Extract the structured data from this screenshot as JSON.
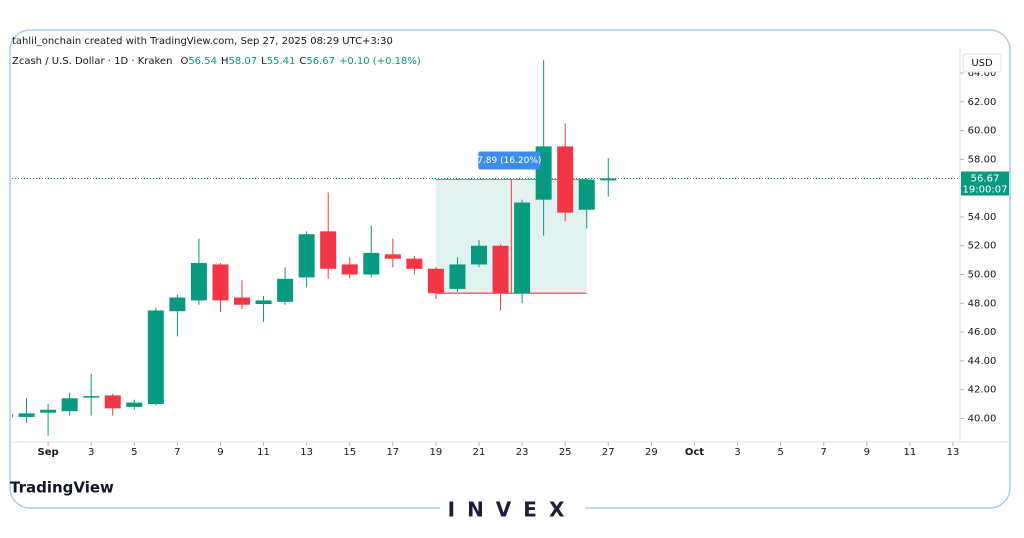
{
  "header": {
    "credit": "tahlil_onchain created with TradingView.com, Sep 27, 2025 08:29 UTC+3:30",
    "symbol": "Zcash / U.S. Dollar · 1D · Kraken",
    "ohlc_labels": [
      "O",
      "H",
      "L",
      "C"
    ],
    "change": "+0.10 (+0.18%)"
  },
  "chart_data": {
    "type": "candlestick",
    "currency": "USD",
    "x": [
      "2025-08-30",
      "2025-08-31",
      "2025-09-01",
      "2025-09-02",
      "2025-09-03",
      "2025-09-04",
      "2025-09-05",
      "2025-09-06",
      "2025-09-07",
      "2025-09-08",
      "2025-09-09",
      "2025-09-10",
      "2025-09-11",
      "2025-09-12",
      "2025-09-13",
      "2025-09-14",
      "2025-09-15",
      "2025-09-16",
      "2025-09-17",
      "2025-09-18",
      "2025-09-19",
      "2025-09-20",
      "2025-09-21",
      "2025-09-22",
      "2025-09-23",
      "2025-09-24",
      "2025-09-25",
      "2025-09-26",
      "2025-09-27"
    ],
    "open": [
      40.3,
      40.1,
      40.4,
      40.5,
      41.5,
      41.6,
      40.8,
      41.0,
      47.45,
      48.2,
      50.7,
      48.4,
      47.95,
      48.1,
      49.8,
      53.0,
      50.7,
      50.0,
      51.4,
      51.1,
      50.4,
      49.0,
      50.7,
      52.0,
      48.7,
      55.2,
      58.9,
      54.5,
      56.54
    ],
    "high": [
      40.4,
      41.4,
      41.0,
      41.8,
      43.1,
      41.7,
      41.3,
      47.7,
      48.6,
      52.5,
      50.8,
      49.6,
      48.5,
      50.5,
      53.0,
      55.7,
      51.2,
      53.4,
      52.5,
      51.3,
      50.5,
      51.2,
      52.4,
      52.1,
      55.2,
      64.9,
      60.5,
      56.7,
      58.07
    ],
    "low": [
      39.9,
      39.7,
      38.8,
      40.2,
      40.2,
      40.2,
      40.6,
      40.9,
      45.7,
      47.9,
      47.4,
      47.6,
      46.7,
      47.9,
      49.1,
      49.7,
      49.7,
      49.8,
      50.5,
      50.0,
      48.3,
      48.8,
      50.5,
      47.5,
      48.0,
      52.7,
      53.7,
      53.2,
      55.41
    ],
    "close": [
      40.1,
      40.35,
      40.6,
      41.4,
      41.55,
      40.7,
      41.1,
      47.5,
      48.4,
      50.8,
      48.2,
      47.9,
      48.2,
      49.7,
      52.8,
      50.4,
      50.0,
      51.5,
      51.1,
      50.4,
      48.7,
      50.7,
      52.0,
      48.7,
      55.0,
      58.9,
      54.3,
      56.6,
      56.67
    ],
    "up_color": "#089981",
    "down_color": "#f23645",
    "xlim": [
      "2025-08-30",
      "2025-10-13"
    ],
    "xticks": [
      {
        "value": "2025-09-01",
        "label": "Sep"
      },
      {
        "value": "2025-09-03",
        "label": "3"
      },
      {
        "value": "2025-09-05",
        "label": "5"
      },
      {
        "value": "2025-09-07",
        "label": "7"
      },
      {
        "value": "2025-09-09",
        "label": "9"
      },
      {
        "value": "2025-09-11",
        "label": "11"
      },
      {
        "value": "2025-09-13",
        "label": "13"
      },
      {
        "value": "2025-09-15",
        "label": "15"
      },
      {
        "value": "2025-09-17",
        "label": "17"
      },
      {
        "value": "2025-09-19",
        "label": "19"
      },
      {
        "value": "2025-09-21",
        "label": "21"
      },
      {
        "value": "2025-09-23",
        "label": "23"
      },
      {
        "value": "2025-09-25",
        "label": "25"
      },
      {
        "value": "2025-09-27",
        "label": "27"
      },
      {
        "value": "2025-09-29",
        "label": "29"
      },
      {
        "value": "2025-10-01",
        "label": "Oct"
      },
      {
        "value": "2025-10-03",
        "label": "3"
      },
      {
        "value": "2025-10-05",
        "label": "5"
      },
      {
        "value": "2025-10-07",
        "label": "7"
      },
      {
        "value": "2025-10-09",
        "label": "9"
      },
      {
        "value": "2025-10-11",
        "label": "11"
      },
      {
        "value": "2025-10-13",
        "label": "13"
      }
    ],
    "ylim": [
      38.5,
      65.6
    ],
    "yticks": [
      {
        "value": 40,
        "label": "40.00"
      },
      {
        "value": 42,
        "label": "42.00"
      },
      {
        "value": 44,
        "label": "44.00"
      },
      {
        "value": 46,
        "label": "46.00"
      },
      {
        "value": 48,
        "label": "48.00"
      },
      {
        "value": 50,
        "label": "50.00"
      },
      {
        "value": 52,
        "label": "52.00"
      },
      {
        "value": 54,
        "label": "54.00"
      },
      {
        "value": 56,
        "label": "56.00"
      },
      {
        "value": 58,
        "label": "58.00"
      },
      {
        "value": 60,
        "label": "60.00"
      },
      {
        "value": 62,
        "label": "62.00"
      },
      {
        "value": 64,
        "label": "64.00"
      }
    ],
    "countdown": "19:00:07",
    "measure": {
      "label": "7.89 (16.20%)",
      "start": "2025-09-19",
      "end": "2025-09-26",
      "from": 48.7,
      "to": 56.6
    }
  },
  "footer": {
    "platform": "TradingView",
    "brand": "INVEX"
  }
}
